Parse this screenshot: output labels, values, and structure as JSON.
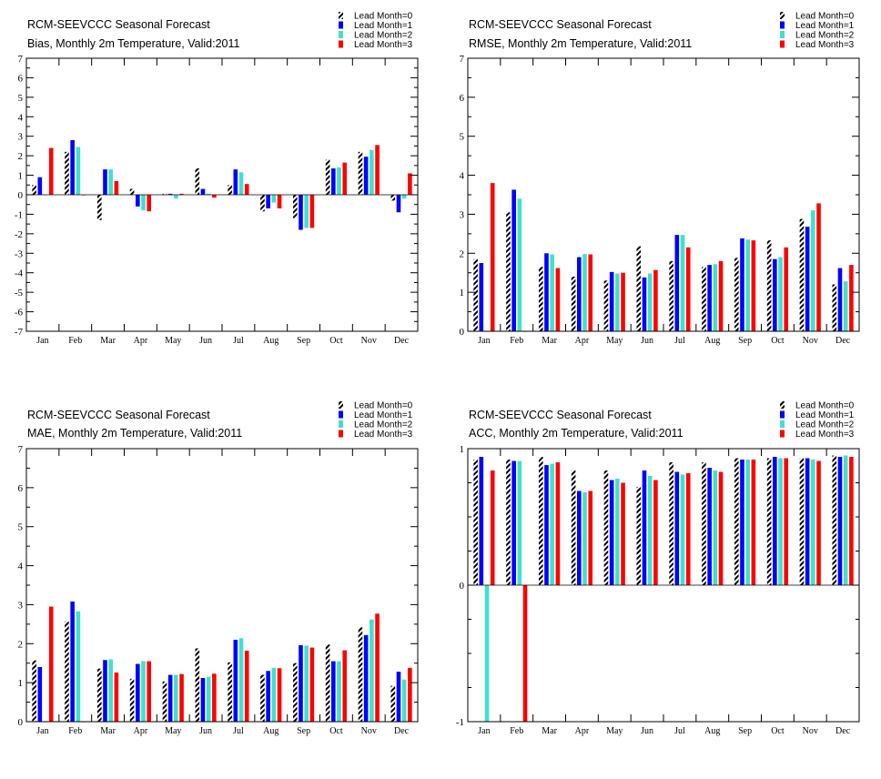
{
  "chart_data": [
    {
      "type": "bar",
      "title": "RCM-SEEVCCC Seasonal Forecast",
      "subtitle": "Bias, Monthly 2m Temperature, Valid:2011",
      "ylim": [
        -7,
        7
      ],
      "yticks": [
        "-7",
        "-6",
        "-5",
        "-4",
        "-3",
        "-2",
        "-1",
        "0",
        "1",
        "2",
        "3",
        "4",
        "5",
        "6",
        "7"
      ],
      "yticks_values": [
        -7,
        -6,
        -5,
        -4,
        -3,
        -2,
        -1,
        0,
        1,
        2,
        3,
        4,
        5,
        6,
        7
      ],
      "categories": [
        "Jan",
        "Feb",
        "Mar",
        "Apr",
        "May",
        "Jun",
        "Jul",
        "Aug",
        "Sep",
        "Oct",
        "Nov",
        "Dec"
      ],
      "legend_position": "top-right",
      "series": [
        {
          "name": "Lead Month=0",
          "color": "#000000",
          "pattern": "hatched",
          "values": [
            0.5,
            2.2,
            -1.3,
            0.3,
            0.05,
            1.35,
            0.5,
            -0.85,
            -1.2,
            1.8,
            2.2,
            -0.3
          ]
        },
        {
          "name": "Lead Month=1",
          "color": "#0000ff",
          "values": [
            0.9,
            2.8,
            1.3,
            -0.6,
            0.05,
            0.3,
            1.3,
            -0.7,
            -1.8,
            1.35,
            1.95,
            -0.9
          ]
        },
        {
          "name": "Lead Month=2",
          "color": "#40e0d0",
          "values": [
            0,
            2.45,
            1.3,
            -0.8,
            -0.2,
            0.05,
            1.15,
            -0.4,
            -1.7,
            1.4,
            2.3,
            -0.2
          ]
        },
        {
          "name": "Lead Month=3",
          "color": "#ff0000",
          "values": [
            2.4,
            0,
            0.7,
            -0.85,
            0.05,
            -0.15,
            0.55,
            -0.7,
            -1.7,
            1.65,
            2.55,
            1.1
          ]
        }
      ]
    },
    {
      "type": "bar",
      "title": "RCM-SEEVCCC Seasonal Forecast",
      "subtitle": "RMSE, Monthly 2m Temperature, Valid:2011",
      "ylim": [
        0,
        7
      ],
      "yticks": [
        "0",
        "1",
        "2",
        "3",
        "4",
        "5",
        "6",
        "7"
      ],
      "yticks_values": [
        0,
        1,
        2,
        3,
        4,
        5,
        6,
        7
      ],
      "categories": [
        "Jan",
        "Feb",
        "Mar",
        "Apr",
        "May",
        "Jun",
        "Jul",
        "Aug",
        "Sep",
        "Oct",
        "Nov",
        "Dec"
      ],
      "legend_position": "top-right",
      "series": [
        {
          "name": "Lead Month=0",
          "color": "#000000",
          "pattern": "hatched",
          "values": [
            1.85,
            3.05,
            1.65,
            1.4,
            1.3,
            2.18,
            1.8,
            1.65,
            1.88,
            2.33,
            2.88,
            1.2
          ]
        },
        {
          "name": "Lead Month=1",
          "color": "#0000ff",
          "values": [
            1.75,
            3.63,
            2.0,
            1.9,
            1.52,
            1.38,
            2.47,
            1.7,
            2.38,
            1.85,
            2.68,
            1.62
          ]
        },
        {
          "name": "Lead Month=2",
          "color": "#40e0d0",
          "values": [
            0,
            3.4,
            1.97,
            1.98,
            1.48,
            1.48,
            2.47,
            1.72,
            2.35,
            1.9,
            3.1,
            1.28
          ]
        },
        {
          "name": "Lead Month=3",
          "color": "#ff0000",
          "values": [
            3.8,
            0,
            1.62,
            1.97,
            1.5,
            1.57,
            2.15,
            1.8,
            2.33,
            2.15,
            3.28,
            1.7
          ]
        }
      ]
    },
    {
      "type": "bar",
      "title": "RCM-SEEVCCC Seasonal Forecast",
      "subtitle": "MAE, Monthly 2m Temperature, Valid:2011",
      "ylim": [
        0,
        7
      ],
      "yticks": [
        "0",
        "1",
        "2",
        "3",
        "4",
        "5",
        "6",
        "7"
      ],
      "yticks_values": [
        0,
        1,
        2,
        3,
        4,
        5,
        6,
        7
      ],
      "categories": [
        "Jan",
        "Feb",
        "Mar",
        "Apr",
        "May",
        "Jun",
        "Jul",
        "Aug",
        "Sep",
        "Oct",
        "Nov",
        "Dec"
      ],
      "legend_position": "top-right",
      "series": [
        {
          "name": "Lead Month=0",
          "color": "#000000",
          "pattern": "hatched",
          "values": [
            1.57,
            2.57,
            1.36,
            1.1,
            1.03,
            1.88,
            1.52,
            1.2,
            1.5,
            1.98,
            2.42,
            0.92
          ]
        },
        {
          "name": "Lead Month=1",
          "color": "#0000ff",
          "values": [
            1.4,
            3.08,
            1.58,
            1.48,
            1.2,
            1.12,
            2.1,
            1.3,
            1.96,
            1.55,
            2.22,
            1.28
          ]
        },
        {
          "name": "Lead Month=2",
          "color": "#40e0d0",
          "values": [
            0,
            2.83,
            1.6,
            1.55,
            1.2,
            1.15,
            2.14,
            1.38,
            1.95,
            1.55,
            2.62,
            1.08
          ]
        },
        {
          "name": "Lead Month=3",
          "color": "#ff0000",
          "values": [
            2.95,
            0,
            1.26,
            1.55,
            1.22,
            1.23,
            1.82,
            1.37,
            1.9,
            1.83,
            2.77,
            1.38
          ]
        }
      ]
    },
    {
      "type": "bar",
      "title": "RCM-SEEVCCC Seasonal Forecast",
      "subtitle": "ACC, Monthly 2m Temperature, Valid:2011",
      "ylim": [
        -1,
        1
      ],
      "yticks": [
        "-1",
        "0",
        "1"
      ],
      "yticks_values": [
        -1,
        0,
        1
      ],
      "categories": [
        "Jan",
        "Feb",
        "Mar",
        "Apr",
        "May",
        "Jun",
        "Jul",
        "Aug",
        "Sep",
        "Oct",
        "Nov",
        "Dec"
      ],
      "legend_position": "top-right",
      "series": [
        {
          "name": "Lead Month=0",
          "color": "#000000",
          "pattern": "hatched",
          "values": [
            0.92,
            0.92,
            0.94,
            0.84,
            0.84,
            0.72,
            0.9,
            0.9,
            0.93,
            0.93,
            0.93,
            0.95
          ]
        },
        {
          "name": "Lead Month=1",
          "color": "#0000ff",
          "values": [
            0.94,
            0.91,
            0.88,
            0.69,
            0.77,
            0.84,
            0.83,
            0.86,
            0.92,
            0.94,
            0.93,
            0.94
          ]
        },
        {
          "name": "Lead Month=2",
          "color": "#40e0d0",
          "values": [
            -1.0,
            0.91,
            0.89,
            0.68,
            0.78,
            0.8,
            0.81,
            0.84,
            0.92,
            0.93,
            0.92,
            0.95
          ]
        },
        {
          "name": "Lead Month=3",
          "color": "#ff0000",
          "values": [
            0.84,
            -1.0,
            0.9,
            0.69,
            0.75,
            0.77,
            0.82,
            0.83,
            0.92,
            0.93,
            0.91,
            0.94
          ]
        }
      ]
    }
  ]
}
